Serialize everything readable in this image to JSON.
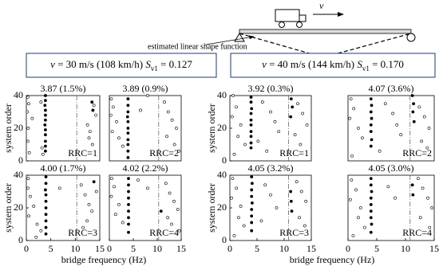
{
  "diagram": {
    "velocity_label": "v",
    "shape_label": "estimated linear shape function"
  },
  "cases": [
    {
      "parts": [
        "v",
        " = 30 m/s (108 km/h) ",
        "S",
        "v1",
        " = 0.127"
      ]
    },
    {
      "parts": [
        "v",
        " = 40 m/s (144 km/h) ",
        "S",
        "v1",
        " = 0.170"
      ]
    }
  ],
  "chart_data": [
    {
      "type": "scatter",
      "title": "3.87 (1.5%)",
      "annotation": "RRC=1",
      "ylabel": "system order",
      "xlim": [
        0,
        15
      ],
      "ylim": [
        0,
        40
      ],
      "yticks": [
        0,
        20,
        40
      ],
      "reference_lines": [
        10.3
      ],
      "series": [
        {
          "color": "#000000",
          "filled": true,
          "x": [
            3.9,
            3.9,
            3.8,
            3.9,
            3.9,
            3.9,
            3.8,
            3.9,
            3.9,
            3.9,
            3.9,
            3.9,
            13.4,
            13.6
          ],
          "y": [
            40,
            37,
            34,
            31,
            28,
            25,
            22,
            19,
            16,
            12,
            9,
            6,
            36,
            31
          ]
        },
        {
          "color": "#000000",
          "filled": false,
          "x": [
            0.3,
            0.5,
            0.2,
            1.2,
            0.4,
            0.3,
            3.2,
            3.4,
            12.5,
            13.0,
            13.8,
            14.2,
            12.8,
            13.5,
            3.0,
            0.6
          ],
          "y": [
            39,
            35,
            30,
            26,
            20,
            12,
            8,
            4,
            22,
            18,
            34,
            28,
            14,
            10,
            36,
            5
          ]
        }
      ]
    },
    {
      "type": "scatter",
      "title": "3.89 (0.9%)",
      "annotation": "RRC=2",
      "xlim": [
        0,
        15
      ],
      "ylim": [
        0,
        40
      ],
      "reference_lines": [
        10.3
      ],
      "series": [
        {
          "color": "#000000",
          "filled": true,
          "x": [
            3.9,
            3.9,
            3.9,
            3.8,
            3.9,
            3.9,
            3.9,
            3.9,
            3.9,
            3.9,
            3.9
          ],
          "y": [
            38,
            34,
            30,
            27,
            24,
            20,
            17,
            13,
            10,
            6,
            2
          ]
        },
        {
          "color": "#000000",
          "filled": false,
          "x": [
            0.4,
            0.8,
            0.3,
            1.5,
            0.6,
            2.0,
            2.8,
            11.5,
            12.3,
            13.1,
            14.0,
            12.0,
            13.6,
            14.5,
            6.5,
            8.0
          ],
          "y": [
            38,
            33,
            28,
            24,
            18,
            14,
            9,
            36,
            30,
            25,
            20,
            15,
            10,
            6,
            31,
            40
          ]
        }
      ]
    },
    {
      "type": "scatter",
      "title": "3.92 (0.3%)",
      "annotation": "RRC=1",
      "ylabel": "system order",
      "xlim": [
        0,
        15
      ],
      "ylim": [
        0,
        40
      ],
      "yticks": [
        0,
        20,
        40
      ],
      "reference_lines": [
        10.8
      ],
      "series": [
        {
          "color": "#000000",
          "filled": true,
          "x": [
            3.9,
            3.9,
            4.0,
            3.9,
            3.9,
            3.9,
            3.9,
            3.9,
            3.9,
            3.9,
            11.3,
            11.5,
            11.2
          ],
          "y": [
            39,
            36,
            32,
            29,
            25,
            22,
            18,
            15,
            11,
            8,
            38,
            33,
            27
          ]
        },
        {
          "color": "#000000",
          "filled": false,
          "x": [
            0.6,
            1.2,
            0.4,
            2.0,
            1.5,
            2.8,
            6.0,
            7.5,
            8.3,
            9.0,
            12.5,
            13.4,
            14.2,
            12.0,
            13.0,
            5.2,
            6.8,
            0.8
          ],
          "y": [
            40,
            33,
            27,
            22,
            15,
            10,
            36,
            30,
            24,
            18,
            35,
            29,
            22,
            16,
            10,
            12,
            6,
            4
          ]
        }
      ]
    },
    {
      "type": "scatter",
      "title": "4.07 (3.6%)",
      "annotation": "RRC=2",
      "xlim": [
        0,
        15
      ],
      "ylim": [
        0,
        40
      ],
      "reference_lines": [
        10.8
      ],
      "series": [
        {
          "color": "#000000",
          "filled": true,
          "x": [
            4.0,
            4.1,
            4.0,
            4.1,
            4.0,
            4.0,
            4.1,
            4.0,
            11.2,
            11.4,
            11.3,
            11.5
          ],
          "y": [
            38,
            34,
            30,
            26,
            22,
            18,
            13,
            9,
            40,
            35,
            30,
            24
          ]
        },
        {
          "color": "#000000",
          "filled": false,
          "x": [
            0.5,
            1.0,
            0.3,
            1.8,
            2.5,
            6.5,
            7.8,
            8.5,
            9.2,
            12.4,
            13.3,
            14.1,
            12.8,
            13.8,
            5.5,
            0.7
          ],
          "y": [
            38,
            32,
            26,
            20,
            14,
            35,
            29,
            22,
            16,
            33,
            27,
            20,
            12,
            8,
            6,
            3
          ]
        }
      ]
    },
    {
      "type": "scatter",
      "title": "4.00 (1.7%)",
      "annotation": "RRC=3",
      "ylabel": "system order",
      "xlabel": "bridge frequency (Hz)",
      "xlim": [
        0,
        15
      ],
      "ylim": [
        0,
        40
      ],
      "xticks": [
        0,
        5,
        10,
        15
      ],
      "yticks": [
        0,
        20,
        40
      ],
      "reference_lines": [
        10.3
      ],
      "series": [
        {
          "color": "#000000",
          "filled": true,
          "x": [
            4.0,
            4.0,
            3.9,
            4.0,
            4.0,
            4.0,
            4.0,
            4.0,
            4.0,
            4.0,
            13.8
          ],
          "y": [
            39,
            35,
            31,
            28,
            24,
            20,
            16,
            12,
            8,
            4,
            36
          ]
        },
        {
          "color": "#000000",
          "filled": false,
          "x": [
            0.4,
            0.3,
            0.8,
            1.5,
            0.5,
            2.2,
            3.0,
            11.2,
            12.0,
            12.8,
            13.4,
            14.3,
            12.4,
            11.6,
            6.8,
            2.0
          ],
          "y": [
            38,
            32,
            27,
            21,
            15,
            10,
            6,
            34,
            28,
            22,
            18,
            30,
            12,
            8,
            32,
            2
          ]
        }
      ]
    },
    {
      "type": "scatter",
      "title": "4.02 (2.2%)",
      "annotation": "RRC=4",
      "xlim": [
        0,
        15
      ],
      "ylim": [
        0,
        40
      ],
      "xticks": [
        0,
        5,
        10,
        15
      ],
      "reference_lines": [
        10.3
      ],
      "series": [
        {
          "color": "#000000",
          "filled": true,
          "x": [
            4.0,
            4.0,
            4.0,
            4.0,
            4.0,
            4.0,
            4.0,
            4.0,
            4.0,
            10.8
          ],
          "y": [
            38,
            34,
            30,
            26,
            22,
            18,
            14,
            10,
            5,
            18
          ]
        },
        {
          "color": "#000000",
          "filled": false,
          "x": [
            0.5,
            1.0,
            0.4,
            2.0,
            1.3,
            2.8,
            6.0,
            11.8,
            12.6,
            13.5,
            14.3,
            12.2,
            13.0,
            14.6,
            8.0
          ],
          "y": [
            38,
            33,
            27,
            22,
            16,
            11,
            37,
            35,
            29,
            24,
            19,
            14,
            10,
            6,
            32
          ]
        }
      ]
    },
    {
      "type": "scatter",
      "title": "4.05 (3.2%)",
      "annotation": "RRC=3",
      "ylabel": "system order",
      "xlabel": "bridge frequency (Hz)",
      "xlim": [
        0,
        15
      ],
      "ylim": [
        0,
        40
      ],
      "xticks": [
        0,
        5,
        10,
        15
      ],
      "yticks": [
        0,
        20,
        40
      ],
      "reference_lines": [
        10.8
      ],
      "series": [
        {
          "color": "#000000",
          "filled": true,
          "x": [
            4.0,
            4.1,
            4.0,
            4.0,
            4.1,
            4.0,
            4.0,
            4.0,
            4.0,
            11.2,
            11.3,
            11.4
          ],
          "y": [
            39,
            35,
            31,
            27,
            23,
            19,
            15,
            11,
            6,
            30,
            24,
            18
          ]
        },
        {
          "color": "#000000",
          "filled": false,
          "x": [
            0.5,
            1.2,
            0.3,
            2.0,
            1.6,
            2.6,
            6.5,
            7.5,
            8.6,
            12.3,
            13.2,
            14.0,
            12.8,
            13.8,
            0.8,
            5.8
          ],
          "y": [
            38,
            32,
            26,
            21,
            14,
            9,
            34,
            28,
            20,
            36,
            30,
            24,
            14,
            9,
            3,
            12
          ]
        }
      ]
    },
    {
      "type": "scatter",
      "title": "4.05 (3.0%)",
      "annotation": "RRC=4",
      "xlim": [
        0,
        15
      ],
      "ylim": [
        0,
        40
      ],
      "xticks": [
        0,
        5,
        10,
        15
      ],
      "reference_lines": [
        10.8
      ],
      "series": [
        {
          "color": "#000000",
          "filled": true,
          "x": [
            4.0,
            4.0,
            4.1,
            4.0,
            4.0,
            4.0,
            4.0,
            4.1,
            4.0,
            11.2,
            11.3
          ],
          "y": [
            38,
            34,
            30,
            26,
            22,
            18,
            14,
            10,
            5,
            34,
            28
          ]
        },
        {
          "color": "#000000",
          "filled": false,
          "x": [
            0.6,
            1.4,
            0.4,
            2.2,
            1.8,
            2.9,
            7.0,
            8.2,
            12.2,
            13.0,
            13.9,
            14.6,
            12.6,
            14.2,
            0.9
          ],
          "y": [
            37,
            31,
            25,
            20,
            14,
            8,
            33,
            26,
            38,
            32,
            26,
            20,
            14,
            8,
            3
          ]
        }
      ]
    }
  ]
}
